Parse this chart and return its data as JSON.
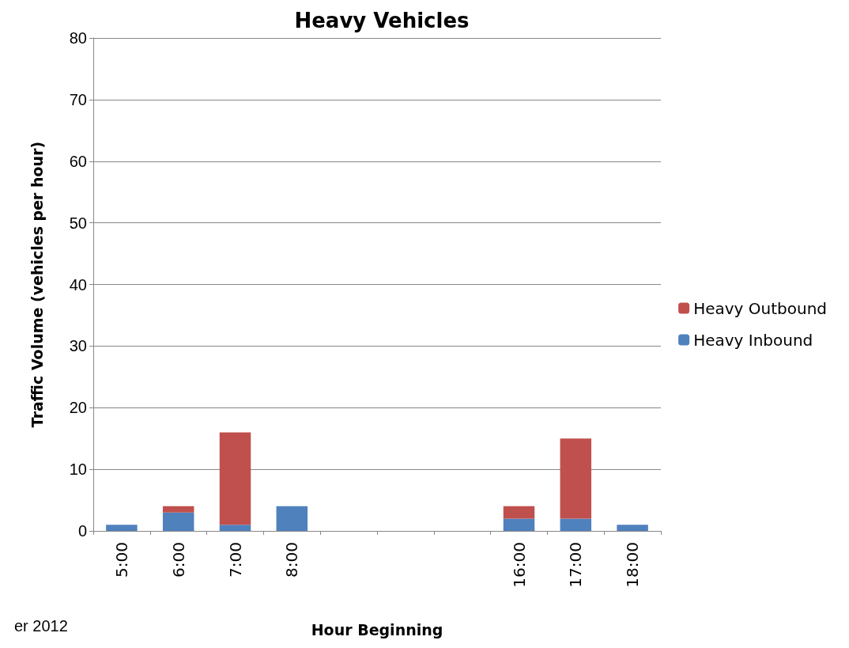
{
  "chart_data": {
    "type": "bar",
    "title": "Heavy Vehicles",
    "xlabel": "Hour Beginning",
    "ylabel": "Traffic Volume (vehicles per hour)",
    "categories": [
      "5:00",
      "6:00",
      "7:00",
      "8:00",
      null,
      null,
      null,
      "16:00",
      "17:00",
      "18:00"
    ],
    "series": [
      {
        "name": "Heavy Inbound",
        "color": "#4f81bd",
        "values": [
          1,
          3,
          1,
          4,
          null,
          null,
          null,
          2,
          2,
          1
        ]
      },
      {
        "name": "Heavy Outbound",
        "color": "#c0504d",
        "values": [
          0,
          1,
          15,
          0,
          null,
          null,
          null,
          2,
          13,
          0
        ]
      }
    ],
    "stacked": true,
    "ylim": [
      0,
      80
    ],
    "yticks": [
      0,
      10,
      20,
      30,
      40,
      50,
      60,
      70,
      80
    ],
    "grid": "y",
    "legend": "right",
    "annotations": [
      "er 2012"
    ]
  }
}
